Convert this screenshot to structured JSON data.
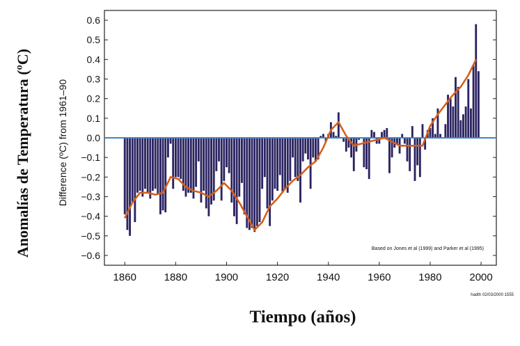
{
  "outer_ylabel": "Anomalías de Temperatura (ºC)",
  "outer_xlabel": "Tiempo (años)",
  "chart_data": {
    "type": "bar",
    "title": "",
    "ylabel": "Difference (ºC) from 1961–90",
    "xlabel": "",
    "ylim": [
      -0.65,
      0.65
    ],
    "xlim": [
      1852,
      2006
    ],
    "yticks": [
      "0.6",
      "0.5",
      "0.4",
      "0.3",
      "0.2",
      "0.1",
      "0.0",
      "-0.1",
      "-0.2",
      "-0.3",
      "-0.4",
      "-0.5",
      "-0.6"
    ],
    "yticks_neg_labels": [
      "−0.1",
      "−0.2",
      "−0.3",
      "−0.4",
      "−0.5",
      "−0.6"
    ],
    "xticks": [
      "1860",
      "1880",
      "1900",
      "1920",
      "1940",
      "1960",
      "1980",
      "2000"
    ],
    "annotation": "Based on Jones et al (1999) and Parker et al (1995)",
    "stamp": "hadth 02/03/2000 1555",
    "grid": false,
    "colors": {
      "bars": "#2a2360",
      "smooth": "#d45f1c",
      "zero_line": "#3d86c8"
    },
    "x": [
      1860,
      1861,
      1862,
      1863,
      1864,
      1865,
      1866,
      1867,
      1868,
      1869,
      1870,
      1871,
      1872,
      1873,
      1874,
      1875,
      1876,
      1877,
      1878,
      1879,
      1880,
      1881,
      1882,
      1883,
      1884,
      1885,
      1886,
      1887,
      1888,
      1889,
      1890,
      1891,
      1892,
      1893,
      1894,
      1895,
      1896,
      1897,
      1898,
      1899,
      1900,
      1901,
      1902,
      1903,
      1904,
      1905,
      1906,
      1907,
      1908,
      1909,
      1910,
      1911,
      1912,
      1913,
      1914,
      1915,
      1916,
      1917,
      1918,
      1919,
      1920,
      1921,
      1922,
      1923,
      1924,
      1925,
      1926,
      1927,
      1928,
      1929,
      1930,
      1931,
      1932,
      1933,
      1934,
      1935,
      1936,
      1937,
      1938,
      1939,
      1940,
      1941,
      1942,
      1943,
      1944,
      1945,
      1946,
      1947,
      1948,
      1949,
      1950,
      1951,
      1952,
      1953,
      1954,
      1955,
      1956,
      1957,
      1958,
      1959,
      1960,
      1961,
      1962,
      1963,
      1964,
      1965,
      1966,
      1967,
      1968,
      1969,
      1970,
      1971,
      1972,
      1973,
      1974,
      1975,
      1976,
      1977,
      1978,
      1979,
      1980,
      1981,
      1982,
      1983,
      1984,
      1985,
      1986,
      1987,
      1988,
      1989,
      1990,
      1991,
      1992,
      1993,
      1994,
      1995,
      1996,
      1997,
      1998,
      1999
    ],
    "values": [
      -0.39,
      -0.47,
      -0.5,
      -0.33,
      -0.43,
      -0.28,
      -0.27,
      -0.3,
      -0.26,
      -0.28,
      -0.31,
      -0.27,
      -0.26,
      -0.29,
      -0.39,
      -0.37,
      -0.38,
      -0.1,
      -0.03,
      -0.26,
      -0.2,
      -0.2,
      -0.21,
      -0.27,
      -0.3,
      -0.28,
      -0.28,
      -0.31,
      -0.25,
      -0.12,
      -0.33,
      -0.27,
      -0.36,
      -0.4,
      -0.34,
      -0.32,
      -0.17,
      -0.12,
      -0.32,
      -0.22,
      -0.15,
      -0.18,
      -0.33,
      -0.4,
      -0.44,
      -0.3,
      -0.23,
      -0.39,
      -0.46,
      -0.47,
      -0.46,
      -0.48,
      -0.45,
      -0.43,
      -0.26,
      -0.2,
      -0.36,
      -0.45,
      -0.32,
      -0.26,
      -0.27,
      -0.19,
      -0.28,
      -0.26,
      -0.28,
      -0.22,
      -0.1,
      -0.2,
      -0.22,
      -0.33,
      -0.12,
      -0.08,
      -0.11,
      -0.26,
      -0.1,
      -0.12,
      -0.11,
      0.01,
      0.02,
      -0.02,
      0.02,
      0.08,
      0.03,
      0.01,
      0.13,
      0.0,
      -0.02,
      -0.07,
      -0.05,
      -0.1,
      -0.17,
      -0.07,
      -0.01,
      0.0,
      -0.15,
      -0.16,
      -0.21,
      0.04,
      0.03,
      -0.03,
      -0.03,
      0.03,
      0.04,
      0.05,
      -0.18,
      -0.1,
      -0.05,
      -0.03,
      -0.08,
      0.02,
      -0.03,
      -0.12,
      -0.17,
      0.06,
      -0.22,
      -0.14,
      -0.2,
      0.07,
      -0.06,
      0.04,
      0.05,
      0.1,
      0.02,
      0.15,
      0.02,
      0.0,
      0.07,
      0.22,
      0.2,
      0.16,
      0.31,
      0.26,
      0.09,
      0.12,
      0.16,
      0.3,
      0.15,
      0.37,
      0.58,
      0.34
    ],
    "smooth_x": [
      1860,
      1863,
      1866,
      1869,
      1872,
      1875,
      1878,
      1881,
      1884,
      1887,
      1890,
      1893,
      1896,
      1899,
      1902,
      1905,
      1908,
      1911,
      1914,
      1917,
      1920,
      1923,
      1926,
      1929,
      1932,
      1935,
      1938,
      1941,
      1944,
      1947,
      1950,
      1953,
      1956,
      1959,
      1962,
      1965,
      1968,
      1971,
      1974,
      1977,
      1980,
      1983,
      1986,
      1989,
      1992,
      1995,
      1998
    ],
    "smooth_y": [
      -0.41,
      -0.33,
      -0.28,
      -0.28,
      -0.29,
      -0.28,
      -0.2,
      -0.21,
      -0.25,
      -0.27,
      -0.28,
      -0.3,
      -0.27,
      -0.23,
      -0.27,
      -0.33,
      -0.4,
      -0.47,
      -0.43,
      -0.35,
      -0.31,
      -0.26,
      -0.22,
      -0.19,
      -0.15,
      -0.12,
      -0.05,
      0.04,
      0.08,
      0.01,
      -0.04,
      -0.03,
      -0.02,
      -0.01,
      0.0,
      -0.02,
      -0.04,
      -0.04,
      -0.04,
      -0.04,
      0.06,
      0.12,
      0.17,
      0.22,
      0.26,
      0.32,
      0.4
    ]
  }
}
